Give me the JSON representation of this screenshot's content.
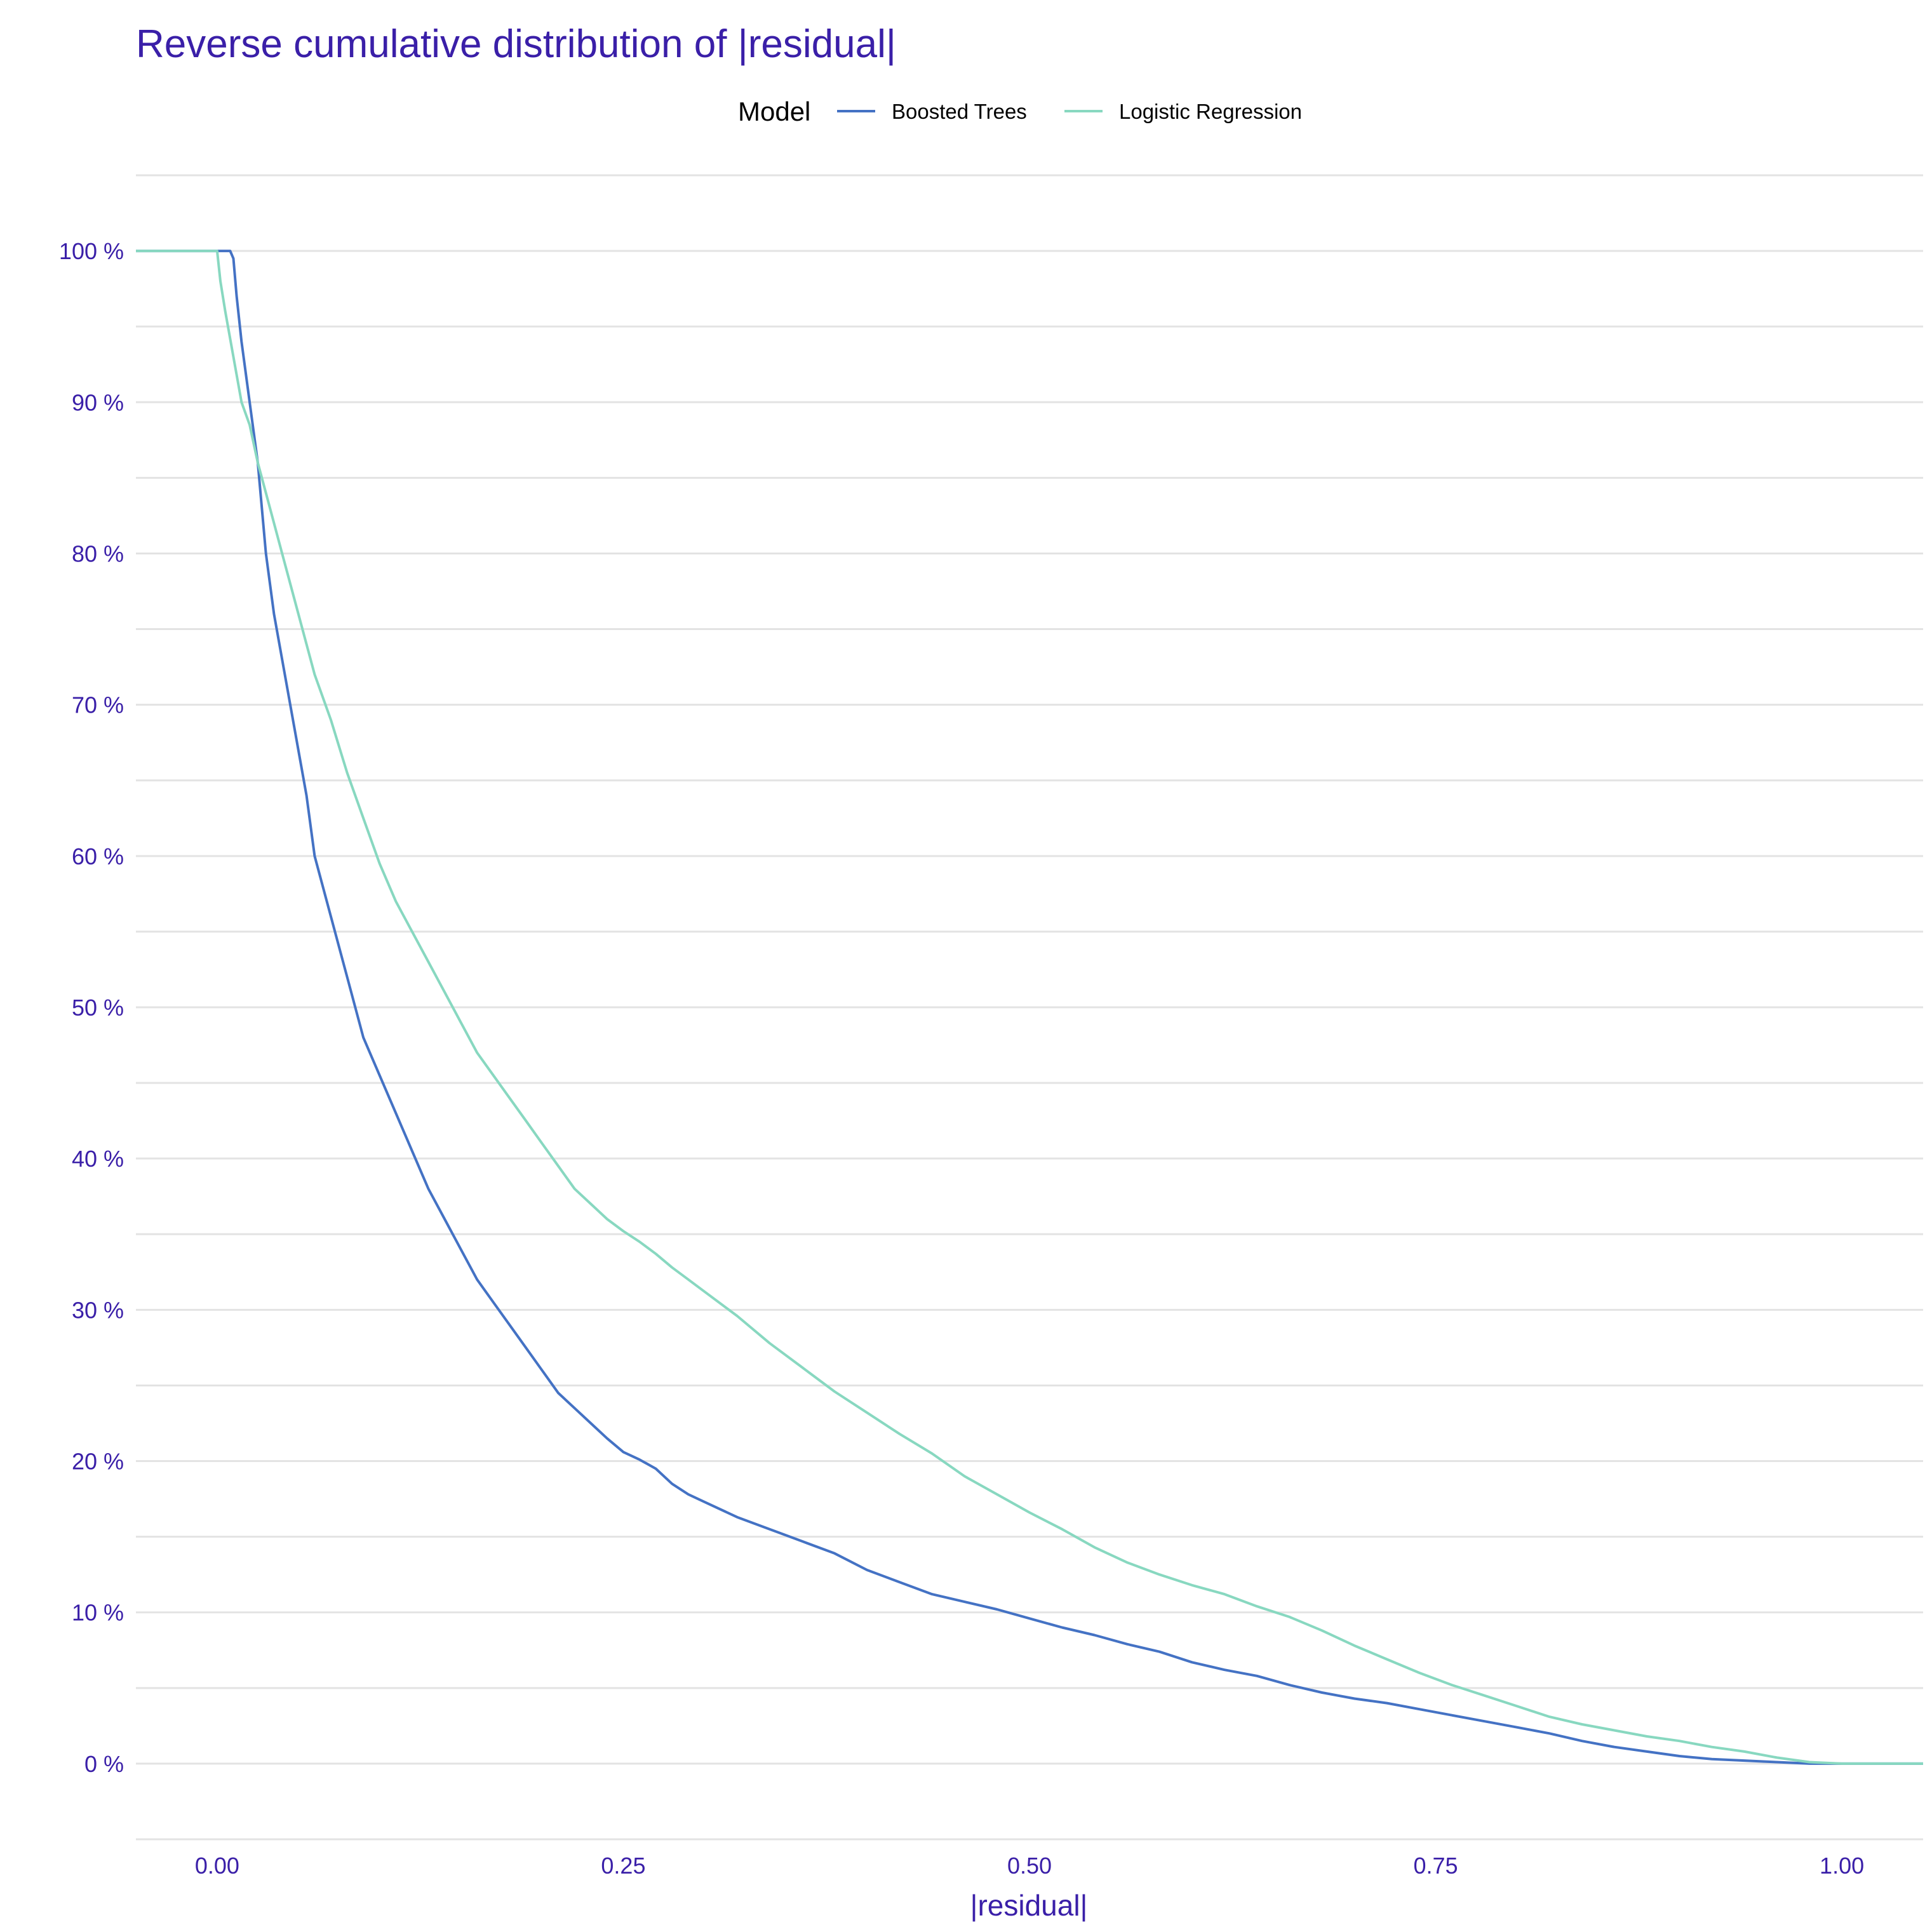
{
  "colors": {
    "title": "#3A1FA8",
    "tick": "#3A1FA8",
    "grid": "#E3E3E3",
    "legend_text": "#000000"
  },
  "chart_data": {
    "type": "line",
    "title": "Reverse cumulative distribution of |residual|",
    "xlabel": "|residual|",
    "ylabel": "",
    "xlim": [
      -0.05,
      1.05
    ],
    "ylim": [
      -0.05,
      1.05
    ],
    "x_ticks": [
      {
        "value": 0.0,
        "label": "0.00"
      },
      {
        "value": 0.25,
        "label": "0.25"
      },
      {
        "value": 0.5,
        "label": "0.50"
      },
      {
        "value": 0.75,
        "label": "0.75"
      },
      {
        "value": 1.0,
        "label": "1.00"
      }
    ],
    "y_ticks": [
      {
        "value": 0.0,
        "label": "0 %"
      },
      {
        "value": 0.1,
        "label": "10 %"
      },
      {
        "value": 0.2,
        "label": "20 %"
      },
      {
        "value": 0.3,
        "label": "30 %"
      },
      {
        "value": 0.4,
        "label": "40 %"
      },
      {
        "value": 0.5,
        "label": "50 %"
      },
      {
        "value": 0.6,
        "label": "60 %"
      },
      {
        "value": 0.7,
        "label": "70 %"
      },
      {
        "value": 0.8,
        "label": "80 %"
      },
      {
        "value": 0.9,
        "label": "90 %"
      },
      {
        "value": 1.0,
        "label": "100 %"
      }
    ],
    "grid": true,
    "legend": {
      "title": "Model",
      "position": "top"
    },
    "series": [
      {
        "name": "Boosted Trees",
        "color": "#4472C4",
        "points": [
          [
            -0.05,
            1.0
          ],
          [
            0.0,
            1.0
          ],
          [
            0.008,
            1.0
          ],
          [
            0.01,
            0.995
          ],
          [
            0.012,
            0.97
          ],
          [
            0.015,
            0.94
          ],
          [
            0.02,
            0.9
          ],
          [
            0.025,
            0.86
          ],
          [
            0.03,
            0.8
          ],
          [
            0.035,
            0.76
          ],
          [
            0.04,
            0.73
          ],
          [
            0.045,
            0.7
          ],
          [
            0.05,
            0.67
          ],
          [
            0.055,
            0.64
          ],
          [
            0.06,
            0.6
          ],
          [
            0.065,
            0.58
          ],
          [
            0.07,
            0.56
          ],
          [
            0.08,
            0.52
          ],
          [
            0.09,
            0.48
          ],
          [
            0.1,
            0.455
          ],
          [
            0.11,
            0.43
          ],
          [
            0.12,
            0.405
          ],
          [
            0.13,
            0.38
          ],
          [
            0.14,
            0.36
          ],
          [
            0.15,
            0.34
          ],
          [
            0.16,
            0.32
          ],
          [
            0.17,
            0.305
          ],
          [
            0.18,
            0.29
          ],
          [
            0.19,
            0.275
          ],
          [
            0.2,
            0.26
          ],
          [
            0.21,
            0.245
          ],
          [
            0.22,
            0.235
          ],
          [
            0.23,
            0.225
          ],
          [
            0.24,
            0.215
          ],
          [
            0.25,
            0.206
          ],
          [
            0.26,
            0.201
          ],
          [
            0.27,
            0.195
          ],
          [
            0.28,
            0.185
          ],
          [
            0.29,
            0.178
          ],
          [
            0.3,
            0.173
          ],
          [
            0.32,
            0.163
          ],
          [
            0.34,
            0.155
          ],
          [
            0.36,
            0.147
          ],
          [
            0.38,
            0.139
          ],
          [
            0.4,
            0.128
          ],
          [
            0.42,
            0.12
          ],
          [
            0.44,
            0.112
          ],
          [
            0.46,
            0.107
          ],
          [
            0.48,
            0.102
          ],
          [
            0.5,
            0.096
          ],
          [
            0.52,
            0.09
          ],
          [
            0.54,
            0.085
          ],
          [
            0.56,
            0.079
          ],
          [
            0.58,
            0.074
          ],
          [
            0.6,
            0.067
          ],
          [
            0.62,
            0.062
          ],
          [
            0.64,
            0.058
          ],
          [
            0.66,
            0.052
          ],
          [
            0.68,
            0.047
          ],
          [
            0.7,
            0.043
          ],
          [
            0.72,
            0.04
          ],
          [
            0.74,
            0.036
          ],
          [
            0.76,
            0.032
          ],
          [
            0.78,
            0.028
          ],
          [
            0.8,
            0.024
          ],
          [
            0.82,
            0.02
          ],
          [
            0.84,
            0.015
          ],
          [
            0.86,
            0.011
          ],
          [
            0.88,
            0.008
          ],
          [
            0.9,
            0.005
          ],
          [
            0.92,
            0.003
          ],
          [
            0.94,
            0.002
          ],
          [
            0.96,
            0.001
          ],
          [
            0.98,
            0.0
          ],
          [
            1.0,
            0.0
          ],
          [
            1.05,
            0.0
          ]
        ]
      },
      {
        "name": "Logistic Regression",
        "color": "#88D8C0",
        "points": [
          [
            -0.05,
            1.0
          ],
          [
            0.0,
            1.0
          ],
          [
            0.002,
            0.98
          ],
          [
            0.005,
            0.96
          ],
          [
            0.01,
            0.93
          ],
          [
            0.015,
            0.9
          ],
          [
            0.02,
            0.885
          ],
          [
            0.025,
            0.86
          ],
          [
            0.03,
            0.84
          ],
          [
            0.04,
            0.8
          ],
          [
            0.05,
            0.76
          ],
          [
            0.06,
            0.72
          ],
          [
            0.07,
            0.69
          ],
          [
            0.08,
            0.655
          ],
          [
            0.09,
            0.625
          ],
          [
            0.1,
            0.595
          ],
          [
            0.11,
            0.57
          ],
          [
            0.12,
            0.55
          ],
          [
            0.13,
            0.53
          ],
          [
            0.14,
            0.51
          ],
          [
            0.15,
            0.49
          ],
          [
            0.16,
            0.47
          ],
          [
            0.17,
            0.455
          ],
          [
            0.18,
            0.44
          ],
          [
            0.19,
            0.425
          ],
          [
            0.2,
            0.41
          ],
          [
            0.21,
            0.395
          ],
          [
            0.22,
            0.38
          ],
          [
            0.23,
            0.37
          ],
          [
            0.24,
            0.36
          ],
          [
            0.25,
            0.352
          ],
          [
            0.26,
            0.345
          ],
          [
            0.27,
            0.337
          ],
          [
            0.28,
            0.328
          ],
          [
            0.29,
            0.32
          ],
          [
            0.3,
            0.312
          ],
          [
            0.32,
            0.296
          ],
          [
            0.34,
            0.278
          ],
          [
            0.36,
            0.262
          ],
          [
            0.38,
            0.246
          ],
          [
            0.4,
            0.232
          ],
          [
            0.42,
            0.218
          ],
          [
            0.44,
            0.205
          ],
          [
            0.46,
            0.19
          ],
          [
            0.48,
            0.178
          ],
          [
            0.5,
            0.166
          ],
          [
            0.52,
            0.155
          ],
          [
            0.54,
            0.143
          ],
          [
            0.56,
            0.133
          ],
          [
            0.58,
            0.125
          ],
          [
            0.6,
            0.118
          ],
          [
            0.62,
            0.112
          ],
          [
            0.64,
            0.104
          ],
          [
            0.66,
            0.097
          ],
          [
            0.68,
            0.088
          ],
          [
            0.7,
            0.078
          ],
          [
            0.72,
            0.069
          ],
          [
            0.74,
            0.06
          ],
          [
            0.76,
            0.052
          ],
          [
            0.78,
            0.045
          ],
          [
            0.8,
            0.038
          ],
          [
            0.82,
            0.031
          ],
          [
            0.84,
            0.026
          ],
          [
            0.86,
            0.022
          ],
          [
            0.88,
            0.018
          ],
          [
            0.9,
            0.015
          ],
          [
            0.92,
            0.011
          ],
          [
            0.94,
            0.008
          ],
          [
            0.96,
            0.004
          ],
          [
            0.98,
            0.001
          ],
          [
            1.0,
            0.0
          ],
          [
            1.05,
            0.0
          ]
        ]
      }
    ]
  }
}
